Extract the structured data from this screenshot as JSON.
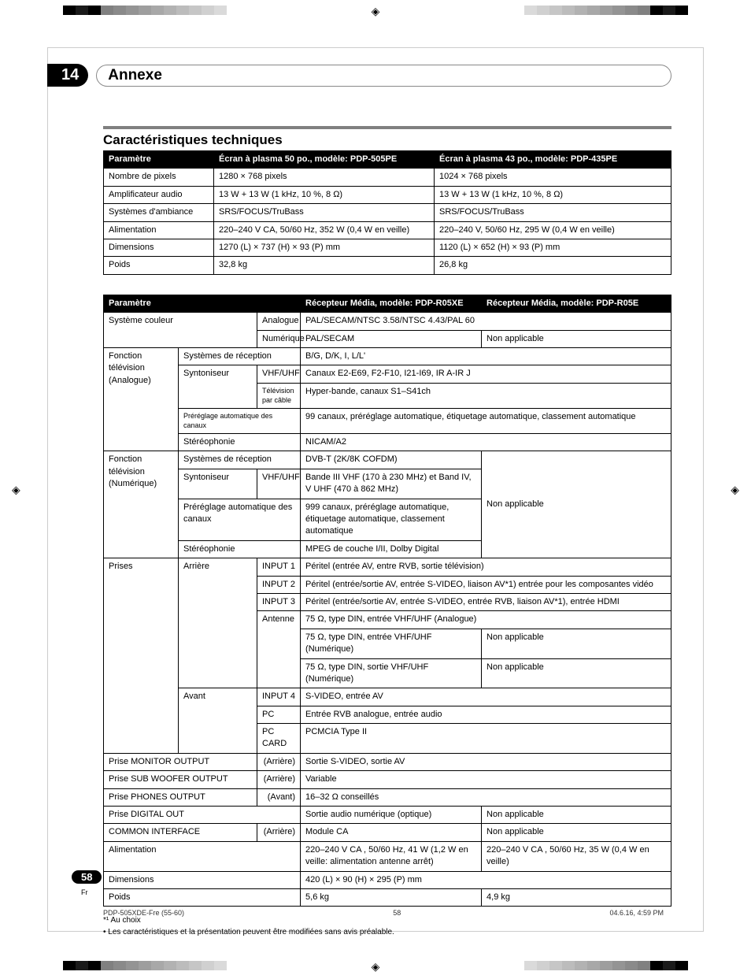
{
  "colors": {
    "crop_scale": [
      "#808080",
      "#8a8a8a",
      "#949494",
      "#9e9e9e",
      "#a8a8a8",
      "#b2b2b2",
      "#bcbcbc",
      "#c6c6c6",
      "#d0d0d0",
      "#dadada"
    ],
    "black": "#000000",
    "dark": "#1a1a1a"
  },
  "chapter": {
    "number": "14",
    "title": "Annexe"
  },
  "section1": {
    "title": "Caractéristiques techniques"
  },
  "table1": {
    "headers": [
      "Paramètre",
      "Écran à plasma 50 po., modèle: PDP-505PE",
      "Écran à plasma 43 po., modèle: PDP-435PE"
    ],
    "rows": [
      [
        "Nombre de pixels",
        "1280 × 768 pixels",
        "1024 × 768 pixels"
      ],
      [
        "Amplificateur audio",
        "13 W + 13 W (1 kHz, 10 %, 8 Ω)",
        "13 W + 13 W (1 kHz, 10 %, 8 Ω)"
      ],
      [
        "Systèmes d'ambiance",
        "SRS/FOCUS/TruBass",
        "SRS/FOCUS/TruBass"
      ],
      [
        "Alimentation",
        "220–240 V CA, 50/60 Hz, 352 W (0,4 W en veille)",
        "220–240 V, 50/60 Hz, 295 W (0,4 W en veille)"
      ],
      [
        "Dimensions",
        "1270 (L) × 737 (H) × 93 (P) mm",
        "1120 (L) × 652 (H) × 93 (P) mm"
      ],
      [
        "Poids",
        "32,8 kg",
        "26,8 kg"
      ]
    ]
  },
  "table2": {
    "headers": [
      "Paramètre",
      "Récepteur Média, modèle: PDP-R05XE",
      "Récepteur Média, modèle: PDP-R05E"
    ],
    "r_sys_color": "Système couleur",
    "r_analog": "Analogue",
    "r_sys_color_v": "PAL/SECAM/NTSC 3.58/NTSC 4.43/PAL 60",
    "r_numer": "Numérique",
    "r_numer_v": "PAL/SECAM",
    "r_na": "Non applicable",
    "r_tv_ana": "Fonction télévision (Analogue)",
    "r_rec_sys": "Systèmes de réception",
    "r_rec_sys_v": "B/G, D/K, I, L/L'",
    "r_synt": "Syntoniseur",
    "r_vhfuhf": "VHF/UHF",
    "r_synt_v": "Canaux E2-E69, F2-F10, I21-I69, IR A-IR J",
    "r_cable": "Télévision par câble",
    "r_cable_v": "Hyper-bande, canaux S1–S41ch",
    "r_prereg": "Préréglage automatique des canaux",
    "r_prereg_v": "99 canaux, préréglage automatique, étiquetage automatique, classement automatique",
    "r_stereo": "Stéréophonie",
    "r_stereo_v": "NICAM/A2",
    "r_tv_num": "Fonction télévision (Numérique)",
    "r_num_rec_v": "DVB-T (2K/8K COFDM)",
    "r_num_synt_v": "Bande III VHF (170 à 230 MHz) et  Band IV, V UHF (470 à 862 MHz)",
    "r_num_prereg": "Préréglage automatique des canaux",
    "r_num_prereg_v": "999 canaux, préréglage automatique, étiquetage automatique, classement automatique",
    "r_num_stereo_v": "MPEG de couche I/II, Dolby Digital",
    "r_prises": "Prises",
    "r_arr": "Arrière",
    "r_input1": "INPUT 1",
    "r_input1_v": "Péritel (entrée AV, entre RVB, sortie télévision)",
    "r_input2": "INPUT 2",
    "r_input2_v": "Péritel (entrée/sortie AV, entrée S-VIDEO, liaison AV*1) entrée pour les composantes vidéo",
    "r_input3": "INPUT 3",
    "r_input3_v": "Péritel (entrée/sortie AV, entrée S-VIDEO, entrée RVB, liaison AV*1), entrée HDMI",
    "r_ant": "Antenne",
    "r_ant1": "75 Ω, type DIN, entrée VHF/UHF (Analogue)",
    "r_ant2": "75 Ω, type DIN, entrée VHF/UHF (Numérique)",
    "r_ant3": "75 Ω, type DIN, sortie VHF/UHF (Numérique)",
    "r_avant": "Avant",
    "r_input4": "INPUT 4",
    "r_input4_v": "S-VIDEO, entrée AV",
    "r_pc": "PC",
    "r_pc_v": "Entrée RVB analogue, entrée audio",
    "r_pccard": "PC CARD",
    "r_pccard_v": "PCMCIA Type II",
    "r_monitor": "Prise MONITOR OUTPUT",
    "r_arr_p": "(Arrière)",
    "r_monitor_v": "Sortie S-VIDEO, sortie AV",
    "r_sub": "Prise SUB WOOFER OUTPUT",
    "r_sub_v": "Variable",
    "r_phones": "Prise PHONES OUTPUT",
    "r_avant_p": "(Avant)",
    "r_phones_v": "16–32 Ω conseillés",
    "r_digout": "Prise DIGITAL OUT",
    "r_digout_v": "Sortie audio numérique (optique)",
    "r_common": "COMMON INTERFACE",
    "r_common_v": "Module CA",
    "r_alim": "Alimentation",
    "r_alim_v1": "220–240 V CA , 50/60 Hz, 41 W (1,2 W en veille: alimentation antenne arrêt)",
    "r_alim_v2": "220–240 V CA , 50/60 Hz, 35 W (0,4 W en veille)",
    "r_dim": "Dimensions",
    "r_dim_v": "420 (L) × 90 (H) × 295 (P) mm",
    "r_poids": "Poids",
    "r_poids_v1": "5,6 kg",
    "r_poids_v2": "4,9 kg"
  },
  "footnotes": {
    "f1": "*¹ Au choix",
    "f2": "• Les caractéristiques et la présentation peuvent être modifiées sans avis préalable."
  },
  "footer": {
    "page_num": "58",
    "lang": "Fr",
    "doc_id": "PDP-505XDE-Fre (55-60)",
    "page": "58",
    "timestamp": "04.6.16, 4:59 PM"
  }
}
